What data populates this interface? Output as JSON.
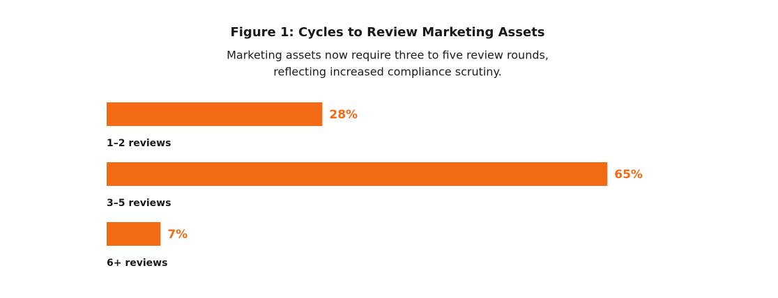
{
  "chart_data": {
    "type": "bar",
    "orientation": "horizontal",
    "title": "Figure 1: Cycles to Review Marketing Assets",
    "subtitle": [
      "Marketing assets now require three to five review rounds,",
      "reflecting increased compliance scrutiny."
    ],
    "categories": [
      "1–2 reviews",
      "3–5 reviews",
      "6+ reviews"
    ],
    "values": [
      28,
      65,
      7
    ],
    "value_labels": [
      "28%",
      "65%",
      "7%"
    ],
    "color": "#f26a13"
  }
}
